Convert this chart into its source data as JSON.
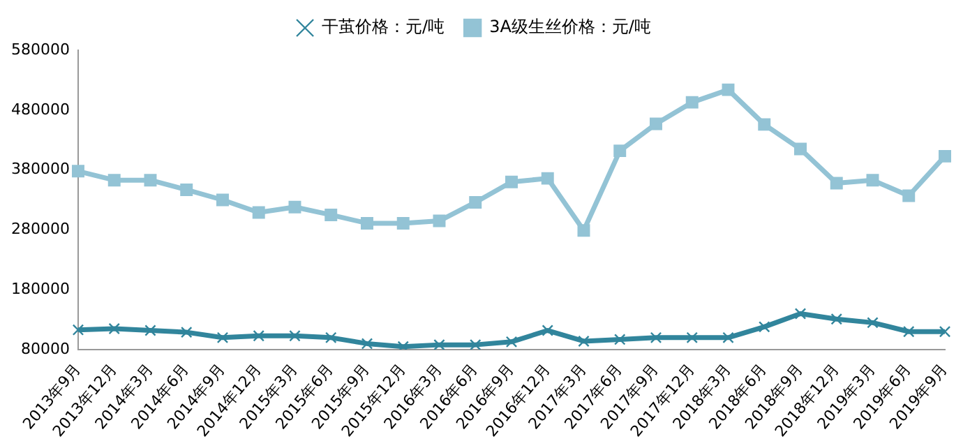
{
  "chart_data": {
    "type": "line",
    "categories": [
      "2013年9月",
      "2013年12月",
      "2014年3月",
      "2014年6月",
      "2014年9月",
      "2014年12月",
      "2015年3月",
      "2015年6月",
      "2015年9月",
      "2015年12月",
      "2016年3月",
      "2016年6月",
      "2016年9月",
      "2016年12月",
      "2017年3月",
      "2017年6月",
      "2017年9月",
      "2017年12月",
      "2018年3月",
      "2018年6月",
      "2018年9月",
      "2018年12月",
      "2019年3月",
      "2019年6月",
      "2019年9月"
    ],
    "series": [
      {
        "name": "干茧价格：元/吨",
        "color": "#31859c",
        "marker": "cross",
        "values": [
          113000,
          115000,
          112000,
          109000,
          100000,
          103000,
          103000,
          100000,
          90000,
          85000,
          88000,
          88000,
          93000,
          112000,
          94000,
          97000,
          100000,
          100000,
          100000,
          118000,
          140000,
          131000,
          125000,
          110000,
          110000
        ]
      },
      {
        "name": "3A级生丝价格：元/吨",
        "color": "#93c3d5",
        "marker": "square",
        "values": [
          378000,
          363000,
          363000,
          347000,
          330000,
          309000,
          318000,
          305000,
          291000,
          291000,
          295000,
          326000,
          360000,
          366000,
          279000,
          412000,
          457000,
          493000,
          514000,
          456000,
          415000,
          358000,
          363000,
          337000,
          403000
        ]
      }
    ],
    "ylim": [
      80000,
      580000
    ],
    "yticks": [
      80000,
      180000,
      280000,
      380000,
      480000,
      580000
    ],
    "grid": false,
    "legend": "top"
  }
}
